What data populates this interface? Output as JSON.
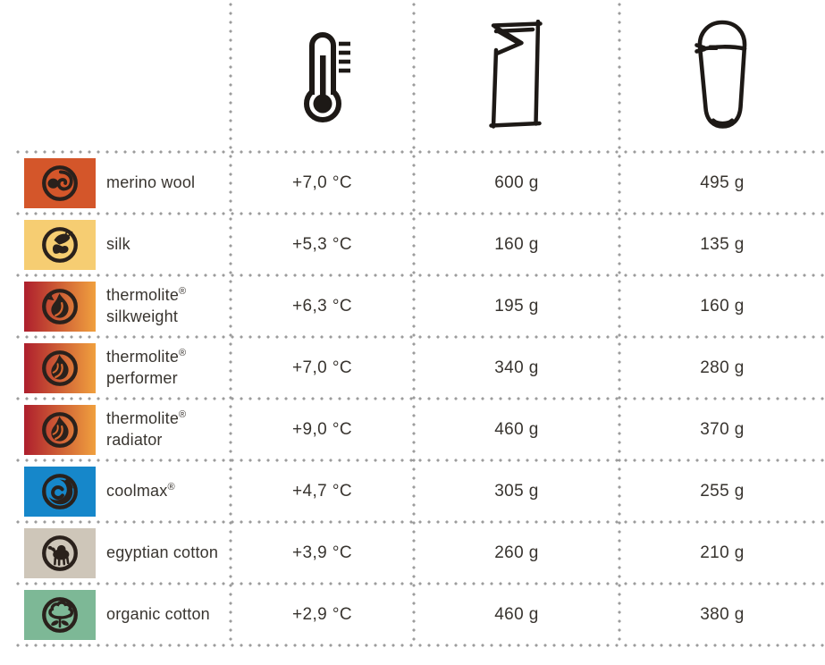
{
  "header": {
    "column_icons": [
      "thermometer-icon",
      "rectangular-liner-icon",
      "mummy-liner-icon"
    ]
  },
  "colors": {
    "dotted_line": "#9c9c9c",
    "text": "#38342f",
    "logo_dark": "#2a211c"
  },
  "table": {
    "rows": [
      {
        "material": "merino wool",
        "icon": "ram-icon",
        "swatch": {
          "type": "solid",
          "color": "#d4562a"
        },
        "temperature": "+7,0 °C",
        "weight_rectangular": "600 g",
        "weight_mummy": "495 g"
      },
      {
        "material": "silk",
        "icon": "butterfly-icon",
        "swatch": {
          "type": "solid",
          "color": "#f6cd72"
        },
        "temperature": "+5,3 °C",
        "weight_rectangular": "160 g",
        "weight_mummy": "135 g"
      },
      {
        "material": "thermolite® silkweight",
        "icon": "flame-butterfly-icon",
        "swatch": {
          "type": "gradient",
          "from": "#ae1f2d",
          "to": "#f0a03e",
          "mid": "#d4672f"
        },
        "temperature": "+6,3 °C",
        "weight_rectangular": "195 g",
        "weight_mummy": "160 g"
      },
      {
        "material": "thermolite® performer",
        "icon": "flame-icon",
        "swatch": {
          "type": "gradient",
          "from": "#ae1f2d",
          "to": "#f0a03e",
          "mid": "#d4672f"
        },
        "temperature": "+7,0 °C",
        "weight_rectangular": "340 g",
        "weight_mummy": "280 g"
      },
      {
        "material": "thermolite® radiator",
        "icon": "flame-icon",
        "swatch": {
          "type": "gradient",
          "from": "#ae1f2d",
          "to": "#f0a03e",
          "mid": "#d4672f"
        },
        "temperature": "+9,0 °C",
        "weight_rectangular": "460 g",
        "weight_mummy": "370 g"
      },
      {
        "material": "coolmax®",
        "icon": "coolmax-icon",
        "swatch": {
          "type": "solid",
          "color": "#1687ca"
        },
        "temperature": "+4,7 °C",
        "weight_rectangular": "305 g",
        "weight_mummy": "255 g"
      },
      {
        "material": "egyptian cotton",
        "icon": "camel-icon",
        "swatch": {
          "type": "solid",
          "color": "#cec6b9"
        },
        "temperature": "+3,9 °C",
        "weight_rectangular": "260 g",
        "weight_mummy": "210 g"
      },
      {
        "material": "organic cotton",
        "icon": "cotton-icon",
        "swatch": {
          "type": "solid",
          "color": "#7db896"
        },
        "temperature": "+2,9 °C",
        "weight_rectangular": "460 g",
        "weight_mummy": "380 g"
      }
    ]
  },
  "chart_data": {
    "type": "table",
    "title": "",
    "columns": [
      "material",
      "temperature rating (°C, added warmth)",
      "rectangular liner weight (g)",
      "mummy liner weight (g)"
    ],
    "rows": [
      [
        "merino wool",
        7.0,
        600,
        495
      ],
      [
        "silk",
        5.3,
        160,
        135
      ],
      [
        "thermolite® silkweight",
        6.3,
        195,
        160
      ],
      [
        "thermolite® performer",
        7.0,
        340,
        280
      ],
      [
        "thermolite® radiator",
        9.0,
        460,
        370
      ],
      [
        "coolmax®",
        4.7,
        305,
        255
      ],
      [
        "egyptian cotton",
        3.9,
        260,
        210
      ],
      [
        "organic cotton",
        2.9,
        460,
        380
      ]
    ]
  }
}
